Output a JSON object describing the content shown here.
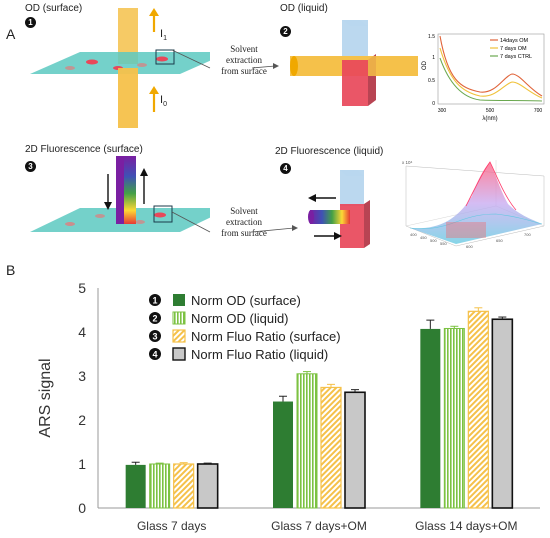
{
  "panelA": {
    "letter": "A",
    "titles": {
      "od_surface": "OD (surface)",
      "od_liquid": "OD (liquid)",
      "fl_surface": "2D Fluorescence (surface)",
      "fl_liquid": "2D Fluorescence (liquid)"
    },
    "nums": [
      "1",
      "2",
      "3",
      "4"
    ],
    "i1_label": "I",
    "i1_sub": "1",
    "i0_label": "I",
    "i0_sub": "0",
    "solvent_caption_line1": "Solvent",
    "solvent_caption_line2": "extraction",
    "solvent_caption_line3": "from surface",
    "colors": {
      "beam": "#f5c14a",
      "surface": "#5cc9c1",
      "red_block": "#e8485a",
      "blue_block": "#b7d6ee"
    }
  },
  "inset_spectrum": {
    "legend": [
      "14days OM",
      "7 days OM",
      "7 days CTRL"
    ],
    "legend_colors": [
      "#e0643a",
      "#f0c23a",
      "#6aa84f"
    ],
    "ylabel": "OD",
    "xlabel": "λ(nm)",
    "yticks": [
      "0",
      "0.5",
      "1",
      "1.5"
    ],
    "xticks": [
      "300",
      "500",
      "700"
    ]
  },
  "inset_3d": {
    "axis_ticks": [
      "400",
      "450",
      "500",
      "550",
      "600",
      "650",
      "700"
    ],
    "scale_label": "x 10⁴"
  },
  "panelB": {
    "letter": "B"
  },
  "chart_data": {
    "type": "bar",
    "ylabel": "ARS signal",
    "xlabel": "",
    "ylim": [
      0,
      5
    ],
    "yticks": [
      0,
      1,
      2,
      3,
      4,
      5
    ],
    "categories": [
      "Glass 7 days",
      "Glass 7 days+OM",
      "Glass 14 days+OM"
    ],
    "legend_placement": "top-left",
    "series": [
      {
        "name": "Norm OD (surface)",
        "marker": "1",
        "values": [
          0.98,
          2.42,
          4.07
        ],
        "errors": [
          0.06,
          0.12,
          0.2
        ],
        "color": "#2e7d32",
        "pattern": "solid"
      },
      {
        "name": "Norm OD (liquid)",
        "marker": "2",
        "values": [
          1.0,
          3.05,
          4.08
        ],
        "errors": [
          0.02,
          0.05,
          0.05
        ],
        "color": "#7cc242",
        "pattern": "vertical"
      },
      {
        "name": "Norm Fluo Ratio (surface)",
        "marker": "3",
        "values": [
          1.0,
          2.74,
          4.47
        ],
        "errors": [
          0.03,
          0.07,
          0.08
        ],
        "color": "#f5c14a",
        "pattern": "diagonal"
      },
      {
        "name": "Norm Fluo Ratio (liquid)",
        "marker": "4",
        "values": [
          1.0,
          2.63,
          4.29
        ],
        "errors": [
          0.02,
          0.06,
          0.05
        ],
        "color": "#c8c8c8",
        "pattern": "outlined"
      }
    ]
  }
}
